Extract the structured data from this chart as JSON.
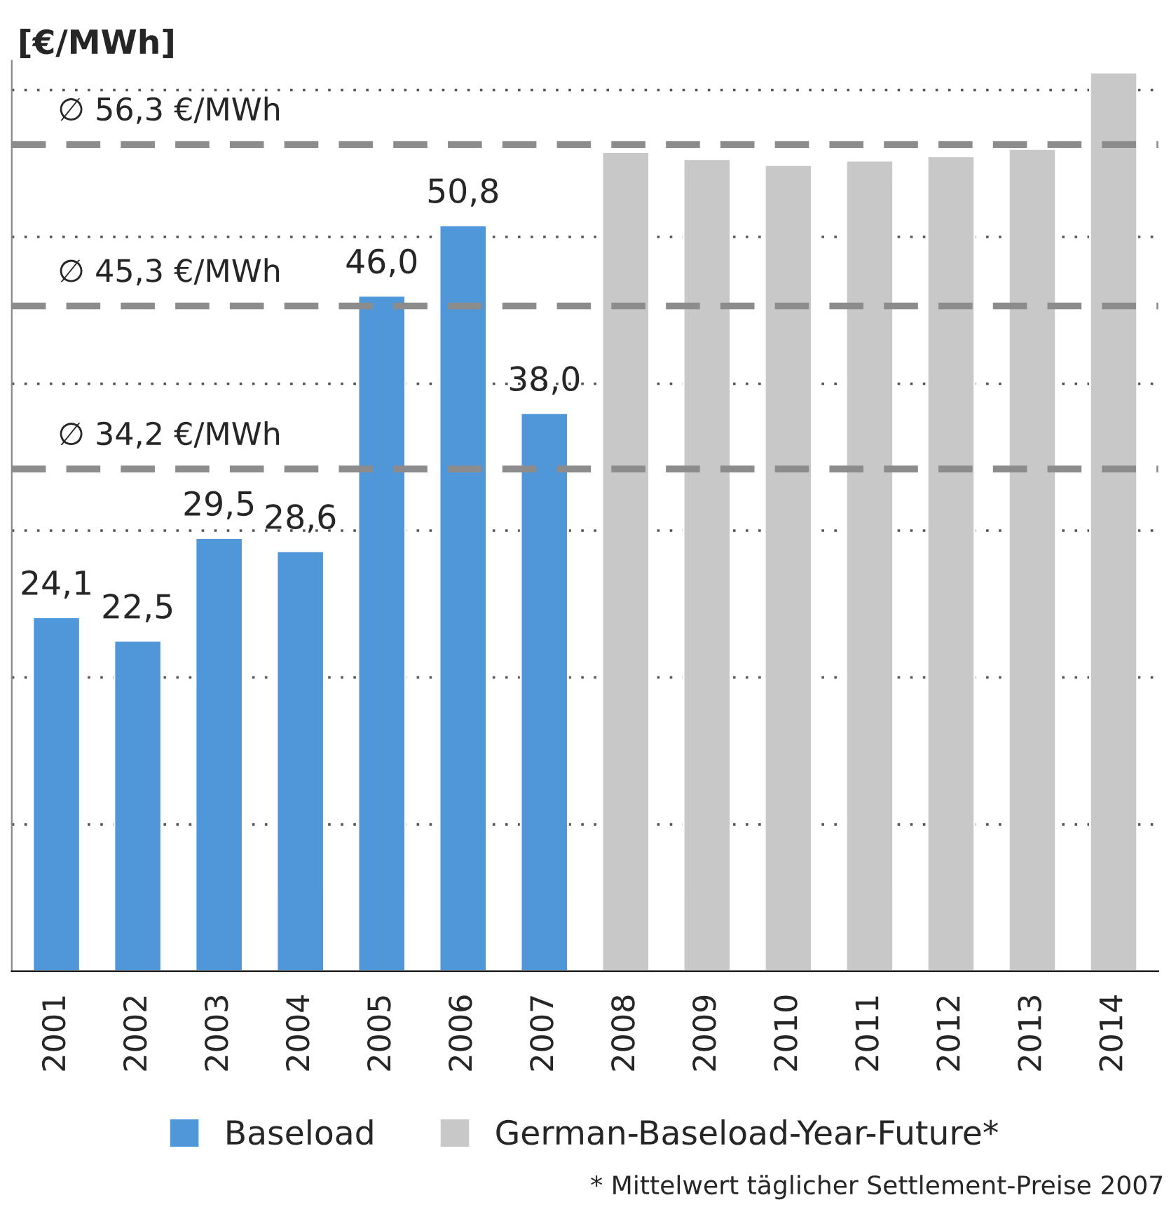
{
  "chart_data": {
    "type": "bar",
    "ylabel": "[€/MWh]",
    "categories": [
      "2001",
      "2002",
      "2003",
      "2004",
      "2005",
      "2006",
      "2007",
      "2008",
      "2009",
      "2010",
      "2011",
      "2012",
      "2013",
      "2014"
    ],
    "series": [
      {
        "name": "Baseload",
        "color": "#4f97d8",
        "values": [
          24.1,
          22.5,
          29.5,
          28.6,
          46.0,
          50.8,
          38.0,
          null,
          null,
          null,
          null,
          null,
          null,
          null
        ],
        "value_labels": [
          "24,1",
          "22,5",
          "29,5",
          "28,6",
          "46,0",
          "50,8",
          "38,0",
          null,
          null,
          null,
          null,
          null,
          null,
          null
        ]
      },
      {
        "name": "German-Baseload-Year-Future*",
        "color": "#c8c8c8",
        "values": [
          null,
          null,
          null,
          null,
          null,
          null,
          null,
          55.8,
          55.3,
          54.9,
          55.2,
          55.5,
          56.0,
          61.2
        ]
      }
    ],
    "ylim": [
      0,
      62
    ],
    "yticks": [
      {
        "value": 10,
        "label": null
      },
      {
        "value": 20,
        "label": null
      },
      {
        "value": 30,
        "label": null
      },
      {
        "value": 40,
        "label": null
      },
      {
        "value": 50,
        "label": null
      },
      {
        "value": 60,
        "label": null
      }
    ],
    "grid": "y",
    "legend": "bottom",
    "ref_lines": [
      {
        "axis": "y",
        "value": 56.3,
        "label": "∅ 56,3 €/MWh",
        "color": "#8c8c8c",
        "line_style": "dashed"
      },
      {
        "axis": "y",
        "value": 45.3,
        "label": "∅ 45,3 €/MWh",
        "color": "#8c8c8c",
        "line_style": "dashed"
      },
      {
        "axis": "y",
        "value": 34.2,
        "label": "∅ 34,2 €/MWh",
        "color": "#8c8c8c",
        "line_style": "dashed"
      }
    ],
    "annotations": [
      "* Mittelwert täglicher Settlement-Preise 2007"
    ]
  }
}
